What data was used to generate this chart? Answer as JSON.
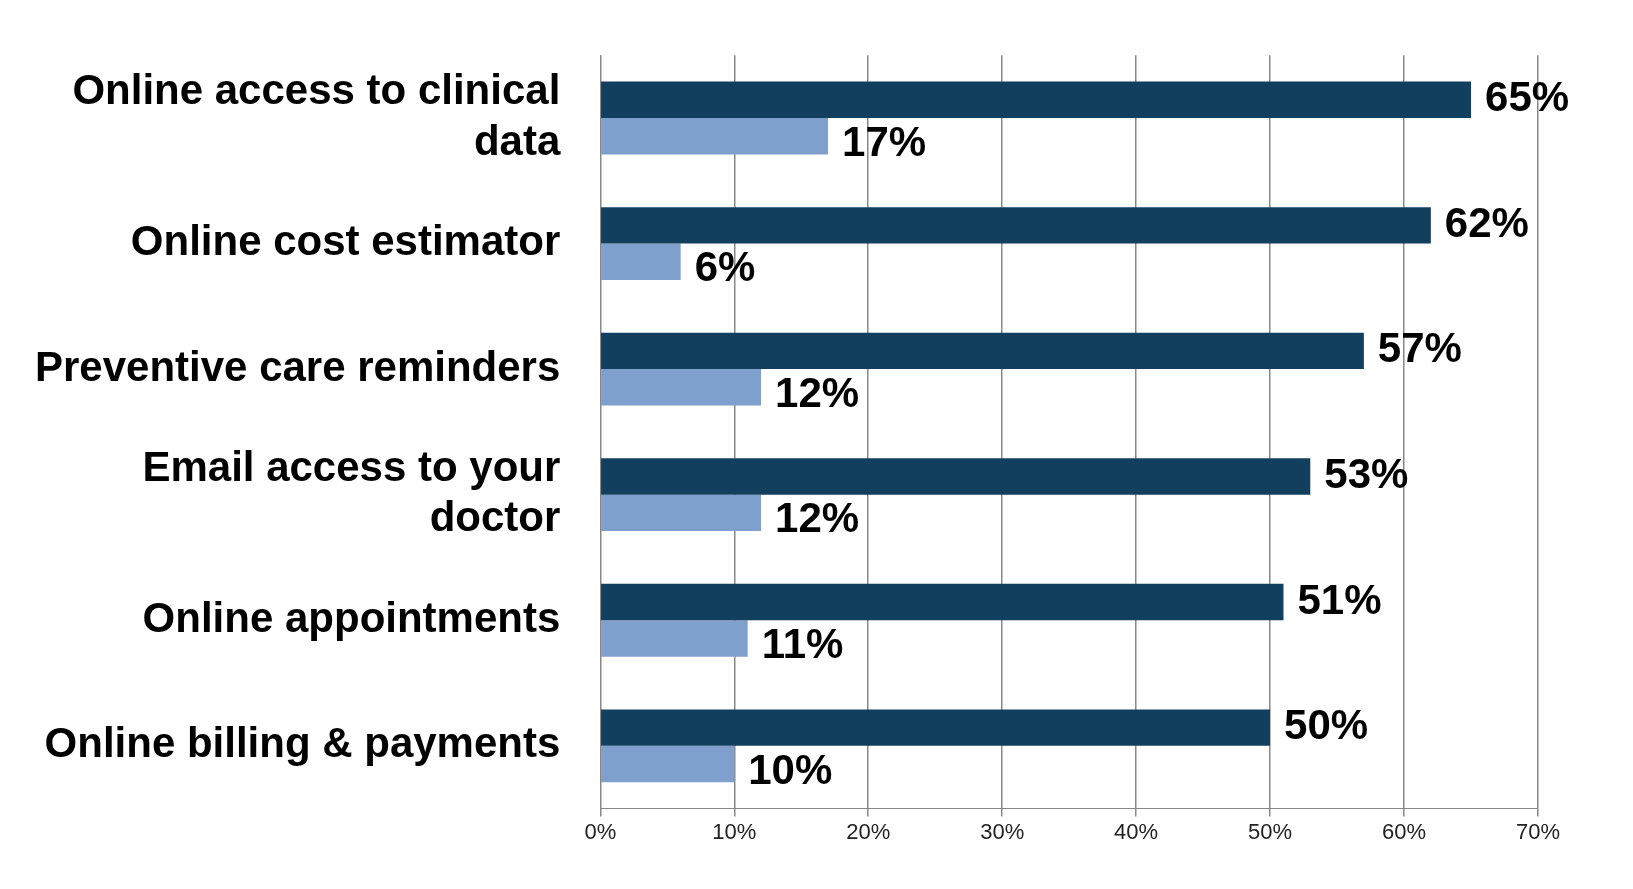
{
  "chart_data": {
    "type": "bar",
    "orientation": "horizontal",
    "categories": [
      "Online access to clinical data",
      "Online cost estimator",
      "Preventive care reminders",
      "Email access to your doctor",
      "Online appointments",
      "Online billing & payments"
    ],
    "series": [
      {
        "color": "#133f5e",
        "values": [
          65,
          62,
          57,
          53,
          51,
          50
        ],
        "value_labels": [
          "65%",
          "62%",
          "57%",
          "53%",
          "51%",
          "50%"
        ]
      },
      {
        "color": "#7f9fcc",
        "values": [
          17,
          6,
          12,
          12,
          11,
          10
        ],
        "value_labels": [
          "17%",
          "6%",
          "12%",
          "12%",
          "11%",
          "10%"
        ]
      }
    ],
    "xlim": [
      0,
      70
    ],
    "xticks": [
      {
        "value": 0,
        "label": "0%"
      },
      {
        "value": 10,
        "label": "10%"
      },
      {
        "value": 20,
        "label": "20%"
      },
      {
        "value": 30,
        "label": "30%"
      },
      {
        "value": 40,
        "label": "40%"
      },
      {
        "value": 50,
        "label": "50%"
      },
      {
        "value": 60,
        "label": "60%"
      },
      {
        "value": 70,
        "label": "70%"
      }
    ],
    "grid": "x",
    "legend": false
  }
}
